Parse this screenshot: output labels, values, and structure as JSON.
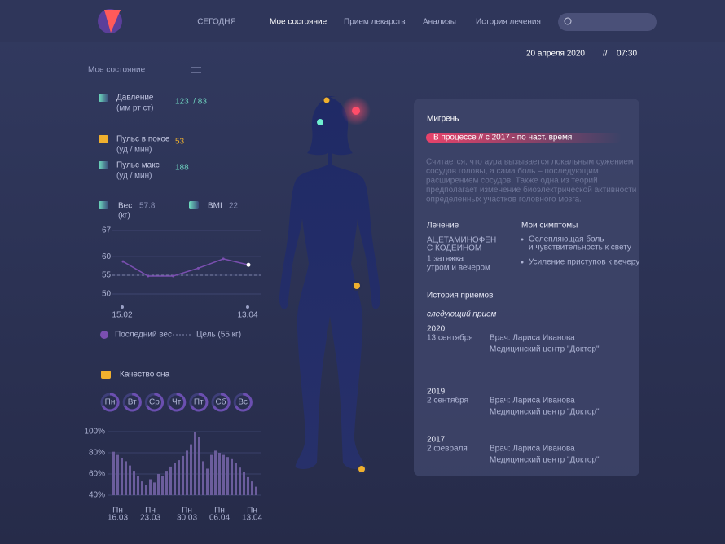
{
  "nav": {
    "items": [
      "СЕГОДНЯ",
      "Мое состояние",
      "Прием лекарств",
      "Анализы",
      "История лечения"
    ]
  },
  "datetime": {
    "date": "20 апреля 2020",
    "separator": "//",
    "time": "07:30"
  },
  "state": {
    "title": "Мое состояние",
    "metrics": [
      {
        "label": "Давление",
        "unit": "(мм рт ст)",
        "value": "123  / 83"
      },
      {
        "label": "Пульс в покое",
        "unit": "(уд / мин)",
        "value": "53"
      },
      {
        "label": "Пульс макс",
        "unit": "(уд / мин)",
        "value": "188"
      },
      {
        "label": "Вес",
        "unit": "(кг)",
        "value": "57.8"
      },
      {
        "label": "BMI",
        "value": "22"
      }
    ]
  },
  "sleep_days": [
    "Пн",
    "Вт",
    "Ср",
    "Чт",
    "Пт",
    "Сб",
    "Вс"
  ],
  "chart_data": [
    {
      "type": "line",
      "series": [
        {
          "name": "Последний вес",
          "color": "#7a4fb0",
          "values": [
            58.7,
            54.8,
            54.8,
            56.9,
            59.4,
            57.8
          ]
        }
      ],
      "categories": [
        "15.02",
        null,
        null,
        null,
        null,
        "13.04"
      ],
      "target": 55,
      "target_label": "Цель (55 кг)",
      "ylim": [
        50,
        67
      ],
      "yticks": [
        50,
        55,
        60,
        67
      ],
      "grid": true
    },
    {
      "type": "bar",
      "title": "Качество сна",
      "color": "#6b5d9c",
      "categories": [
        null,
        "16.03",
        null,
        null,
        null,
        null,
        null,
        null,
        null,
        "23.03",
        null,
        null,
        null,
        null,
        null,
        null,
        null,
        null,
        "30.03",
        null,
        null,
        null,
        null,
        null,
        null,
        null,
        "06.04",
        null,
        null,
        null,
        null,
        null,
        null,
        null,
        "13.04",
        null
      ],
      "category_days": [
        null,
        "Пн",
        null,
        null,
        null,
        null,
        null,
        null,
        null,
        "Пн",
        null,
        null,
        null,
        null,
        null,
        null,
        null,
        null,
        "Пн",
        null,
        null,
        null,
        null,
        null,
        null,
        null,
        "Пн",
        null,
        null,
        null,
        null,
        null,
        null,
        null,
        "Пн",
        null
      ],
      "values": [
        81,
        78,
        75,
        72,
        68,
        63,
        58,
        53,
        50,
        55,
        52,
        60,
        58,
        63,
        67,
        70,
        73,
        77,
        82,
        88,
        100,
        95,
        72,
        65,
        78,
        82,
        80,
        78,
        76,
        74,
        70,
        66,
        62,
        57,
        53,
        48
      ],
      "ylim": [
        40,
        100
      ],
      "yticks": [
        {
          "value": 40,
          "label": "40%"
        },
        {
          "value": 60,
          "label": "60%"
        },
        {
          "value": 80,
          "label": "80%"
        },
        {
          "value": 100,
          "label": "100%"
        }
      ]
    }
  ],
  "panel": {
    "title": "Мигрень",
    "status": "В процессе // с 2017 - по наст. время",
    "description": [
      "Считается, что аура вызывается локальным сужением",
      "сосудов головы, а сама боль – последующим",
      "расширением сосудов. Также одна из теорий",
      "предполагает изменение биоэлектрической активности",
      "определенных участков головного мозга."
    ],
    "treatment": {
      "title": "Лечение",
      "drug": [
        "АЦЕТАМИНОФЕН",
        "С КОДЕИНОМ"
      ],
      "dose": [
        "1 затяжка",
        "утром и вечером"
      ]
    },
    "symptoms": {
      "title": "Мои симптомы",
      "items": [
        [
          "Ослепляющая боль",
          "и чувствительность к свету"
        ],
        [
          "Усиление приступов к вечеру"
        ]
      ]
    },
    "history": {
      "title": "История приемов",
      "next": "следующий прием",
      "entries": [
        {
          "year": "2020",
          "date": "13 сентября",
          "doctor": "Врач: Лариса Иванова",
          "center": "Медицинский центр \"Доктор\""
        },
        {
          "year": "2019",
          "date": "2 сентября",
          "doctor": "Врач: Лариса Иванова",
          "center": "Медицинский центр \"Доктор\""
        },
        {
          "year": "2017",
          "date": "2 февраля",
          "doctor": "Врач: Лариса Иванова",
          "center": "Медицинский центр \"Доктор\""
        }
      ]
    }
  }
}
